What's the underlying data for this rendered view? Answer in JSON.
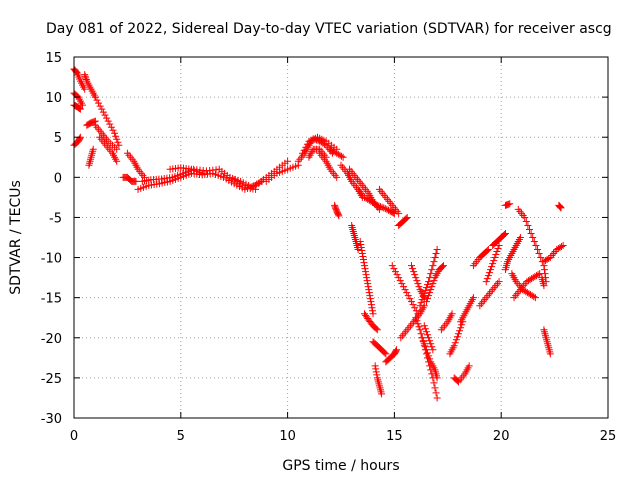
{
  "chart_data": {
    "type": "scatter",
    "title": "Day 081 of 2022, Sidereal Day-to-day VTEC variation (SDTVAR) for receiver ascg",
    "xlabel": "GPS time / hours",
    "ylabel": "SDTVAR / TECUs",
    "xlim": [
      0,
      25
    ],
    "ylim": [
      -30,
      15
    ],
    "xticks": [
      "0",
      "5",
      "10",
      "15",
      "20",
      "25"
    ],
    "yticks": [
      "15",
      "10",
      "5",
      "0",
      "-5",
      "-10",
      "-15",
      "-20",
      "-25",
      "-30"
    ],
    "grid": true,
    "marker": "+",
    "color": "#ff0000",
    "tracks": [
      {
        "x": [
          0.0,
          0.15,
          0.3,
          0.5
        ],
        "y": [
          13.5,
          13.0,
          12.0,
          11.0
        ]
      },
      {
        "x": [
          0.0,
          0.2,
          0.4
        ],
        "y": [
          10.5,
          10.0,
          9.0
        ]
      },
      {
        "x": [
          0.0,
          0.15,
          0.3
        ],
        "y": [
          9.0,
          8.8,
          8.5
        ]
      },
      {
        "x": [
          0.0,
          0.2,
          0.3
        ],
        "y": [
          4.0,
          4.5,
          5.0
        ]
      },
      {
        "x": [
          0.5,
          0.6,
          0.8,
          1.0
        ],
        "y": [
          12.8,
          12.0,
          11.0,
          10.0
        ]
      },
      {
        "x": [
          0.6,
          0.8,
          1.0
        ],
        "y": [
          6.5,
          6.8,
          7.0
        ]
      },
      {
        "x": [
          0.7,
          0.8,
          0.9
        ],
        "y": [
          1.5,
          2.5,
          3.5
        ]
      },
      {
        "x": [
          1.0,
          1.3,
          1.6,
          1.9,
          2.1
        ],
        "y": [
          10.0,
          8.5,
          7.0,
          5.5,
          4.0
        ]
      },
      {
        "x": [
          1.0,
          1.3,
          1.6,
          2.0
        ],
        "y": [
          6.5,
          5.5,
          4.5,
          3.5
        ]
      },
      {
        "x": [
          1.2,
          1.5,
          1.8,
          2.0
        ],
        "y": [
          5.0,
          4.0,
          3.0,
          2.0
        ]
      },
      {
        "x": [
          2.5,
          2.8,
          3.0,
          3.3
        ],
        "y": [
          3.0,
          2.0,
          1.0,
          0.0
        ]
      },
      {
        "x": [
          2.3,
          2.5,
          2.7,
          2.9
        ],
        "y": [
          0.0,
          0.0,
          -0.5,
          -0.5
        ]
      },
      {
        "x": [
          3.0,
          3.5,
          4.0,
          4.5,
          5.0,
          5.5,
          6.0,
          6.5,
          7.0,
          7.5,
          8.0,
          8.5,
          9.0,
          9.5,
          10.0
        ],
        "y": [
          -1.5,
          -1.0,
          -0.8,
          -0.5,
          0.0,
          0.5,
          0.3,
          0.5,
          0.0,
          -0.8,
          -1.5,
          -1.0,
          0.0,
          1.0,
          2.0
        ]
      },
      {
        "x": [
          3.2,
          3.6,
          4.1,
          4.6,
          5.1,
          5.6,
          6.2,
          6.8,
          7.3,
          7.8,
          8.3,
          8.8
        ],
        "y": [
          -0.5,
          -0.3,
          -0.2,
          0.0,
          0.5,
          1.0,
          0.8,
          1.0,
          0.0,
          -0.5,
          -1.2,
          -0.5
        ]
      },
      {
        "x": [
          4.5,
          5.0,
          5.5,
          6.0
        ],
        "y": [
          1.0,
          1.2,
          1.0,
          0.5
        ]
      },
      {
        "x": [
          7.5,
          8.0,
          8.5
        ],
        "y": [
          -0.3,
          -1.3,
          -1.5
        ]
      },
      {
        "x": [
          9.0,
          9.5,
          10.0,
          10.5
        ],
        "y": [
          -0.5,
          0.5,
          1.0,
          1.5
        ]
      },
      {
        "x": [
          10.5,
          10.8,
          11.0,
          11.2,
          11.5,
          11.8,
          12.1
        ],
        "y": [
          2.0,
          3.0,
          4.0,
          4.8,
          4.5,
          4.0,
          3.0
        ]
      },
      {
        "x": [
          10.7,
          11.0,
          11.4,
          11.8,
          12.3
        ],
        "y": [
          3.0,
          4.5,
          5.0,
          4.5,
          3.5
        ]
      },
      {
        "x": [
          11.0,
          11.2,
          11.5,
          11.8
        ],
        "y": [
          2.5,
          3.5,
          3.5,
          2.5
        ]
      },
      {
        "x": [
          11.5,
          11.8,
          12.0,
          12.3
        ],
        "y": [
          3.0,
          2.0,
          1.0,
          0.0
        ]
      },
      {
        "x": [
          12.0,
          12.3,
          12.6
        ],
        "y": [
          3.5,
          3.0,
          2.5
        ]
      },
      {
        "x": [
          12.5,
          12.8,
          13.0,
          13.3,
          13.5
        ],
        "y": [
          1.5,
          0.5,
          -0.5,
          -1.5,
          -2.5
        ]
      },
      {
        "x": [
          12.9,
          13.2,
          13.5,
          13.8,
          14.0,
          14.3
        ],
        "y": [
          1.0,
          0.0,
          -1.0,
          -2.0,
          -3.0,
          -4.0
        ]
      },
      {
        "x": [
          13.3,
          13.6,
          13.9,
          14.2,
          14.5,
          14.8,
          15.0
        ],
        "y": [
          -1.5,
          -2.5,
          -3.0,
          -3.5,
          -3.8,
          -4.2,
          -4.5
        ]
      },
      {
        "x": [
          14.3,
          14.6,
          14.9,
          15.2
        ],
        "y": [
          -1.5,
          -2.5,
          -3.5,
          -4.5
        ]
      },
      {
        "x": [
          15.2,
          15.4,
          15.6
        ],
        "y": [
          -6.0,
          -5.5,
          -5.0
        ]
      },
      {
        "x": [
          12.2,
          12.3,
          12.4
        ],
        "y": [
          -3.5,
          -4.2,
          -4.8
        ]
      },
      {
        "x": [
          13.0,
          13.1,
          13.2,
          13.3
        ],
        "y": [
          -6.0,
          -7.0,
          -8.0,
          -9.0
        ]
      },
      {
        "x": [
          13.4,
          13.5,
          13.6,
          13.7,
          13.8,
          13.9,
          14.0
        ],
        "y": [
          -8.0,
          -9.5,
          -11.0,
          -12.5,
          -14.0,
          -15.5,
          -17.0
        ]
      },
      {
        "x": [
          13.6,
          13.8,
          14.0,
          14.2
        ],
        "y": [
          -17.0,
          -17.8,
          -18.5,
          -19.0
        ]
      },
      {
        "x": [
          14.0,
          14.2,
          14.4,
          14.6
        ],
        "y": [
          -20.5,
          -21.0,
          -21.5,
          -22.0
        ]
      },
      {
        "x": [
          14.6,
          14.8,
          15.0,
          15.1
        ],
        "y": [
          -23.0,
          -22.5,
          -22.0,
          -21.5
        ]
      },
      {
        "x": [
          14.1,
          14.2,
          14.3,
          14.4
        ],
        "y": [
          -23.5,
          -25.0,
          -26.0,
          -27.0
        ]
      },
      {
        "x": [
          14.9,
          15.2,
          15.5,
          15.8,
          16.1
        ],
        "y": [
          -11.0,
          -12.5,
          -14.0,
          -15.5,
          -17.0
        ]
      },
      {
        "x": [
          15.3,
          15.6,
          15.9,
          16.2,
          16.4
        ],
        "y": [
          -20.0,
          -19.0,
          -18.0,
          -17.0,
          -16.0
        ]
      },
      {
        "x": [
          15.8,
          16.0,
          16.2,
          16.4
        ],
        "y": [
          -11.0,
          -12.5,
          -14.0,
          -15.0
        ]
      },
      {
        "x": [
          16.2,
          16.4,
          16.6,
          16.8,
          17.0
        ],
        "y": [
          -16.0,
          -14.5,
          -13.0,
          -11.0,
          -9.0
        ]
      },
      {
        "x": [
          16.5,
          16.7,
          16.9,
          17.1,
          17.3
        ],
        "y": [
          -15.5,
          -14.0,
          -12.5,
          -11.5,
          -11.0
        ]
      },
      {
        "x": [
          16.0,
          16.2,
          16.4,
          16.6,
          16.8,
          17.0
        ],
        "y": [
          -17.5,
          -19.0,
          -21.0,
          -23.0,
          -25.0,
          -27.5
        ]
      },
      {
        "x": [
          16.3,
          16.5,
          16.7,
          16.9,
          17.0
        ],
        "y": [
          -20.0,
          -21.5,
          -23.0,
          -24.0,
          -25.0
        ]
      },
      {
        "x": [
          16.4,
          16.6,
          16.8
        ],
        "y": [
          -18.5,
          -20.0,
          -21.5
        ]
      },
      {
        "x": [
          17.2,
          17.5,
          17.7
        ],
        "y": [
          -19.0,
          -18.0,
          -17.0
        ]
      },
      {
        "x": [
          17.6,
          17.8,
          18.0,
          18.2
        ],
        "y": [
          -22.0,
          -21.0,
          -19.5,
          -18.0
        ]
      },
      {
        "x": [
          17.8,
          18.0,
          18.3,
          18.5
        ],
        "y": [
          -25.0,
          -25.5,
          -24.5,
          -23.5
        ]
      },
      {
        "x": [
          18.1,
          18.3,
          18.5,
          18.7
        ],
        "y": [
          -18.0,
          -17.0,
          -16.0,
          -15.0
        ]
      },
      {
        "x": [
          18.7,
          19.0,
          19.2,
          19.4
        ],
        "y": [
          -11.0,
          -10.0,
          -9.5,
          -9.0
        ]
      },
      {
        "x": [
          19.0,
          19.3,
          19.6,
          19.9
        ],
        "y": [
          -16.0,
          -15.0,
          -14.0,
          -13.0
        ]
      },
      {
        "x": [
          19.3,
          19.5,
          19.7,
          19.9
        ],
        "y": [
          -13.0,
          -11.5,
          -10.0,
          -8.5
        ]
      },
      {
        "x": [
          19.6,
          19.8,
          20.0,
          20.2
        ],
        "y": [
          -8.5,
          -8.0,
          -7.5,
          -7.0
        ]
      },
      {
        "x": [
          20.2,
          20.4
        ],
        "y": [
          -3.5,
          -3.3
        ]
      },
      {
        "x": [
          20.2,
          20.3,
          20.5,
          20.7,
          20.9
        ],
        "y": [
          -11.5,
          -10.5,
          -9.5,
          -8.5,
          -7.5
        ]
      },
      {
        "x": [
          20.5,
          20.7,
          21.0,
          21.3,
          21.6
        ],
        "y": [
          -12.0,
          -13.0,
          -14.0,
          -14.5,
          -15.0
        ]
      },
      {
        "x": [
          20.6,
          20.9,
          21.2,
          21.5,
          21.8
        ],
        "y": [
          -15.0,
          -14.0,
          -13.0,
          -12.5,
          -12.0
        ]
      },
      {
        "x": [
          20.8,
          21.1,
          21.4,
          21.7,
          22.0,
          22.1
        ],
        "y": [
          -4.0,
          -5.0,
          -7.0,
          -9.0,
          -11.0,
          -13.0
        ]
      },
      {
        "x": [
          21.9,
          22.0
        ],
        "y": [
          -12.5,
          -13.5
        ]
      },
      {
        "x": [
          22.0,
          22.3,
          22.6,
          22.9
        ],
        "y": [
          -10.5,
          -10.0,
          -9.0,
          -8.5
        ]
      },
      {
        "x": [
          22.7,
          22.8
        ],
        "y": [
          -3.5,
          -3.8
        ]
      },
      {
        "x": [
          22.0,
          22.1,
          22.2,
          22.3
        ],
        "y": [
          -19.0,
          -20.0,
          -21.0,
          -22.0
        ]
      }
    ]
  }
}
